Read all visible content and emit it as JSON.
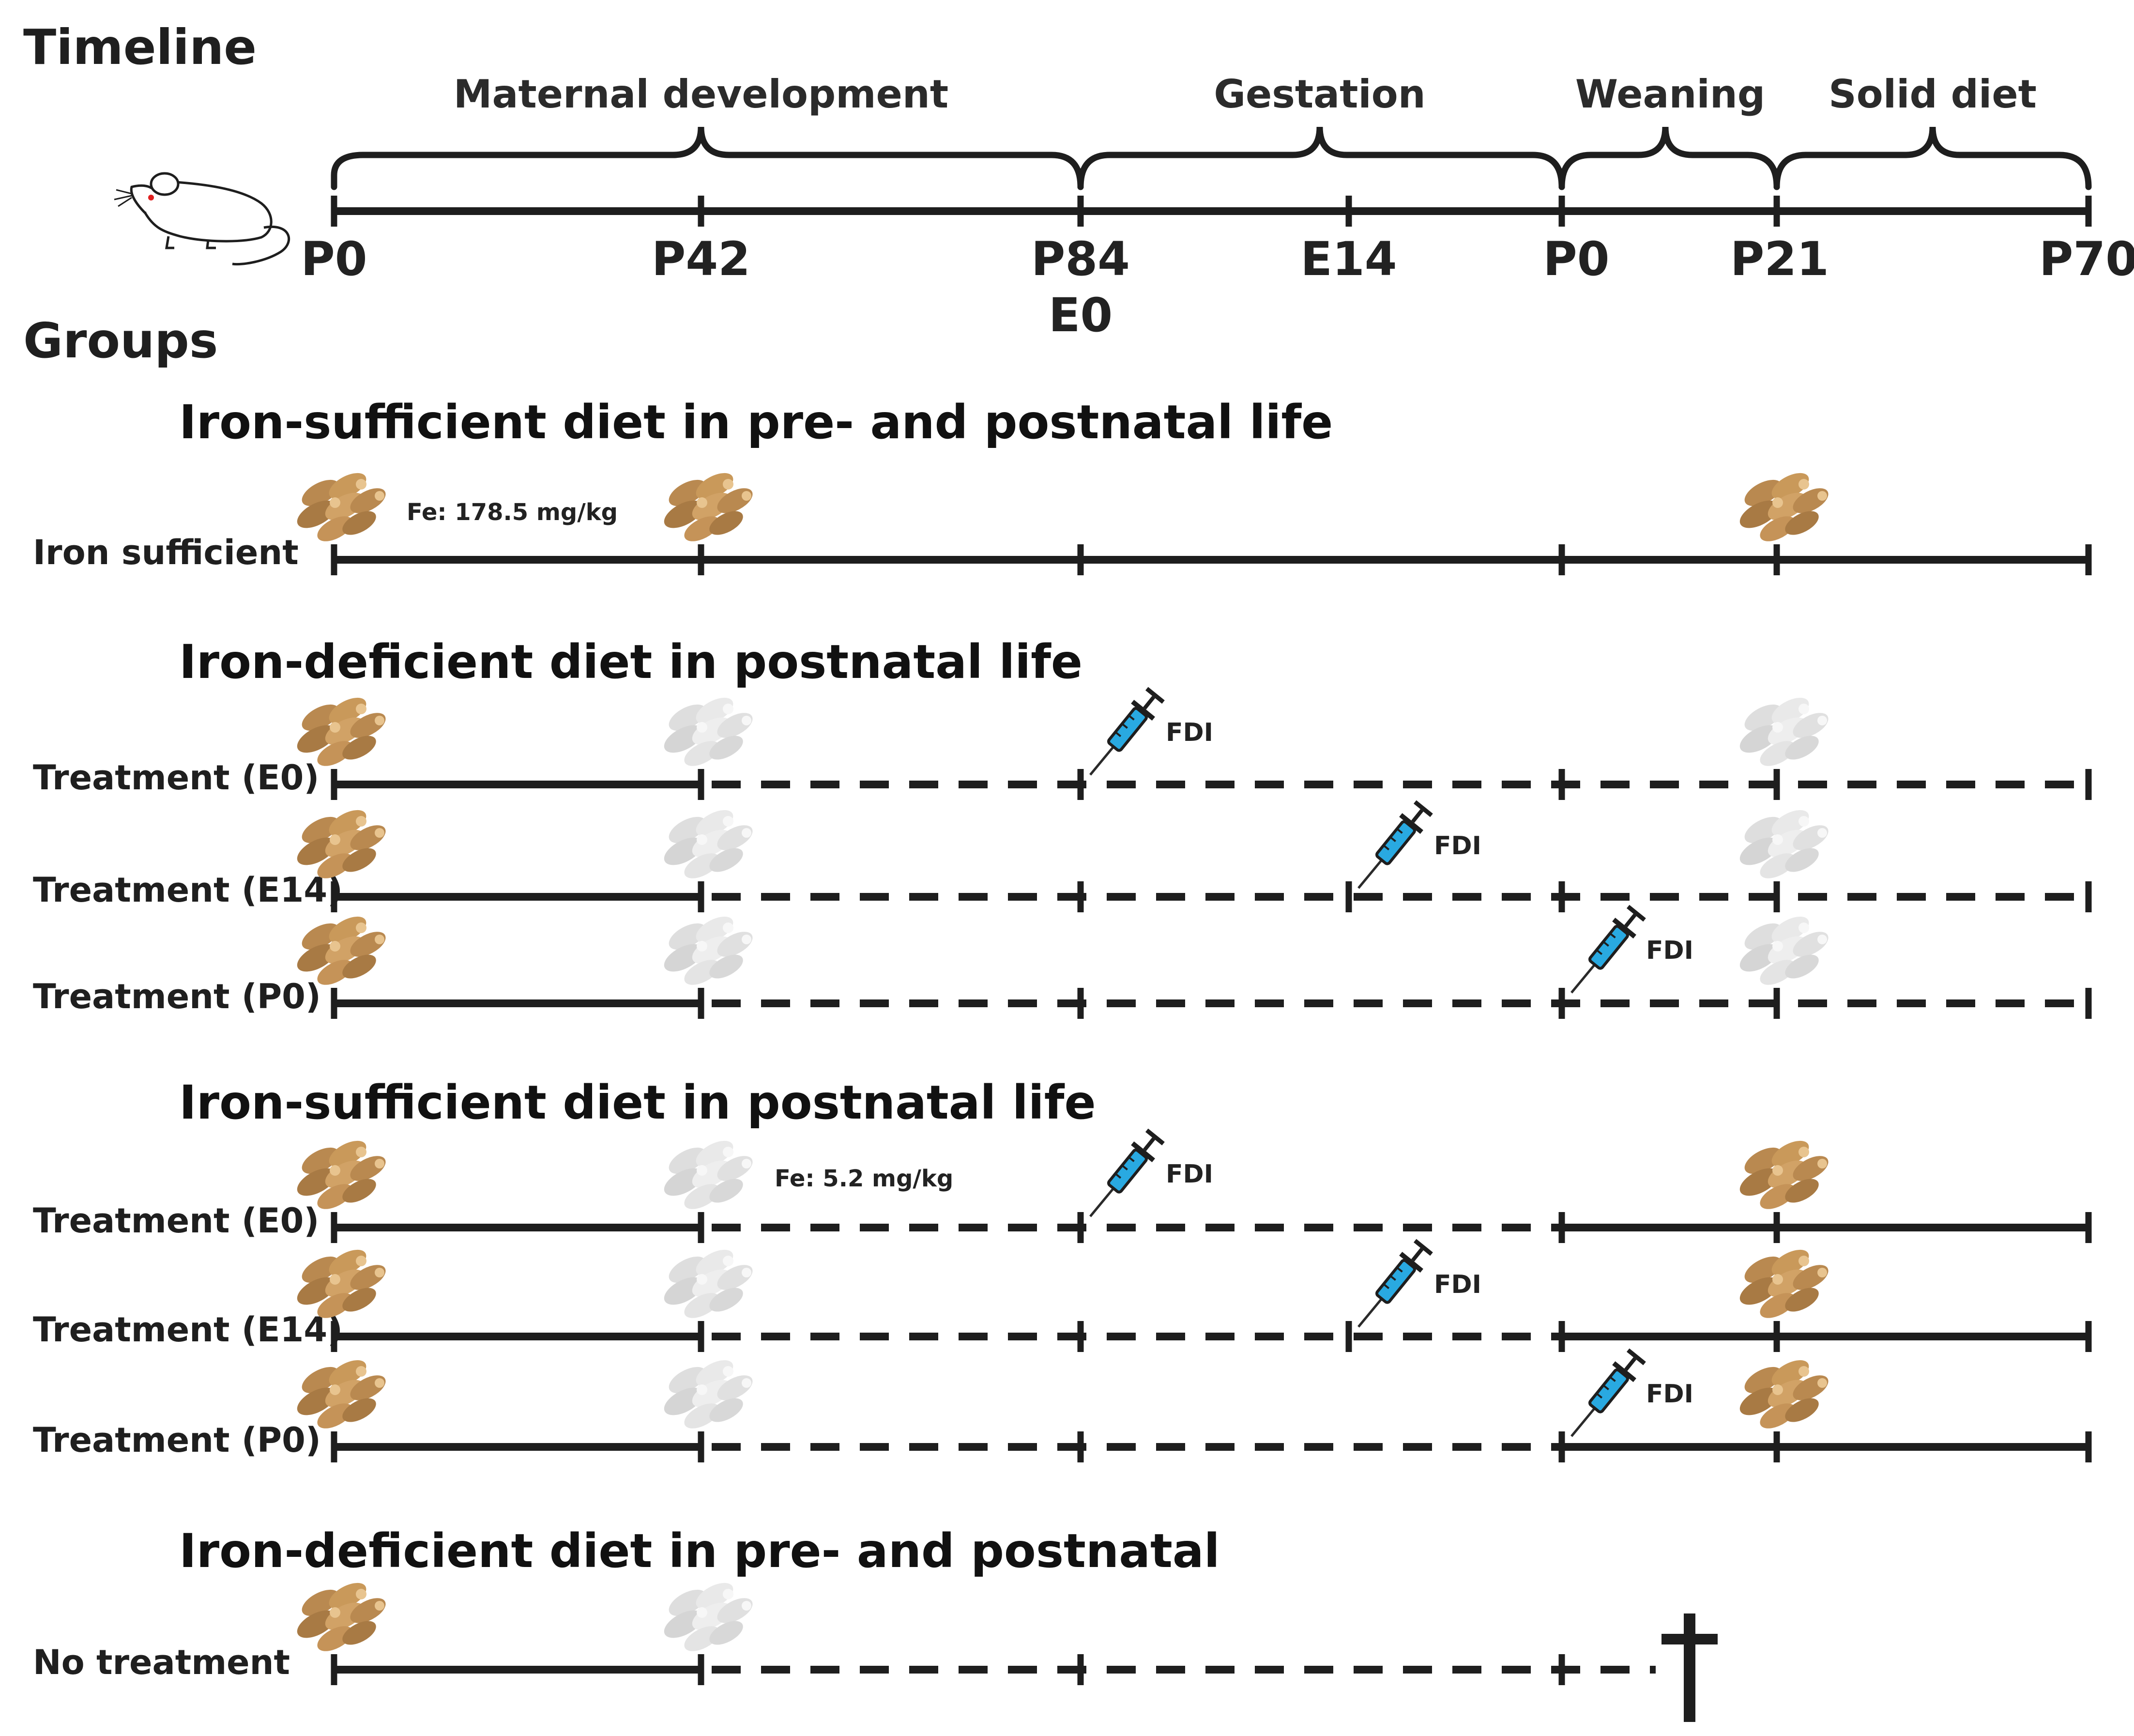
{
  "title": "Timeline",
  "groups_title": "Groups",
  "timeline": {
    "periods": [
      "Maternal development",
      "Gestation",
      "Weaning",
      "Solid diet"
    ],
    "ticks": [
      "P0",
      "P42",
      "P84",
      "E14",
      "P0",
      "P21",
      "P70"
    ],
    "tick_sublabel": "E0"
  },
  "sections": [
    {
      "title": "Iron-sufficient diet in pre- and postnatal life",
      "rows": [
        {
          "label": "Iron sufficient",
          "note": "Fe: 178.5 mg/kg"
        }
      ]
    },
    {
      "title": "Iron-deficient diet in postnatal life",
      "rows": [
        {
          "label": "Treatment (E0)",
          "injection": "FDI"
        },
        {
          "label": "Treatment (E14)",
          "injection": "FDI"
        },
        {
          "label": "Treatment (P0)",
          "injection": "FDI"
        }
      ]
    },
    {
      "title": "Iron-sufficient diet in postnatal life",
      "note": "Fe: 5.2 mg/kg",
      "rows": [
        {
          "label": "Treatment (E0)",
          "injection": "FDI"
        },
        {
          "label": "Treatment (E14)",
          "injection": "FDI"
        },
        {
          "label": "Treatment (P0)",
          "injection": "FDI"
        }
      ]
    },
    {
      "title": "Iron-deficient diet in pre- and postnatal",
      "rows": [
        {
          "label": "No treatment"
        }
      ]
    }
  ],
  "colors": {
    "line": "#1e1e1e",
    "sufficient_chow": "#c9995a",
    "deficient_chow": "#e6e6e6",
    "syringe_fluid": "#29a9e1",
    "mouse_eye": "#e02020"
  }
}
